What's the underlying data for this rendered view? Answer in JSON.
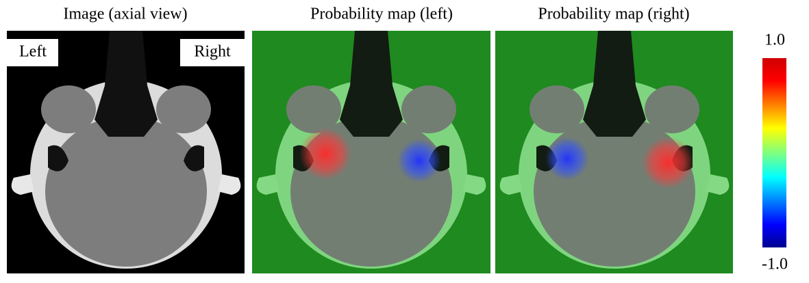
{
  "panels": [
    {
      "title": "Image (axial view)",
      "labels": [
        "Left",
        "Right"
      ]
    },
    {
      "title": "Probability map (left)"
    },
    {
      "title": "Probability map (right)"
    }
  ],
  "colorbar": {
    "ticks": [
      {
        "value": 1,
        "label": "1.0"
      },
      {
        "value": -1,
        "label": "-1.0"
      }
    ]
  }
}
